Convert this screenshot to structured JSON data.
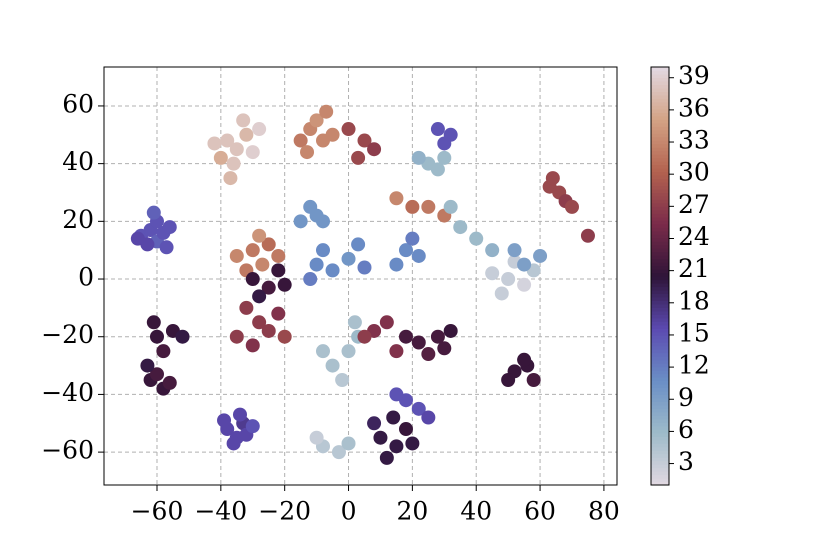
{
  "chart_data": {
    "type": "scatter",
    "xlim": [
      -76.6,
      84.1
    ],
    "ylim": [
      -71.4,
      73.5
    ],
    "xticks": [
      {
        "value": -60,
        "label": "−60"
      },
      {
        "value": -40,
        "label": "−40"
      },
      {
        "value": -20,
        "label": "−20"
      },
      0,
      20,
      40,
      60,
      80
    ],
    "yticks": [
      {
        "value": -60,
        "label": "−60"
      },
      {
        "value": -40,
        "label": "−40"
      },
      {
        "value": -20,
        "label": "−20"
      },
      0,
      20,
      40,
      60
    ],
    "grid": true,
    "clim": [
      1,
      40
    ],
    "cticks": [
      3,
      6,
      9,
      12,
      15,
      18,
      21,
      24,
      27,
      30,
      33,
      36,
      39
    ],
    "colormap": [
      "#e2d9e2",
      "#9ebbc9",
      "#6a8fc6",
      "#5b4ab1",
      "#2f1438",
      "#7a2b4a",
      "#b3624f",
      "#d4a385",
      "#e2d9e2"
    ],
    "x": [
      -65,
      -62,
      -60,
      -63,
      -58,
      -60,
      -56,
      -61,
      -66,
      -57,
      -62,
      -60,
      -58,
      -63,
      -60,
      -58,
      -55,
      -52,
      -61,
      -56,
      -38,
      -35,
      -33,
      -36,
      -32,
      -30,
      -39,
      -34,
      -38,
      -35,
      -32,
      -30,
      -36,
      -40,
      -33,
      -28,
      -37,
      -42,
      -12,
      -8,
      -10,
      -5,
      -15,
      -7,
      -13,
      -30,
      -27,
      -25,
      -32,
      -35,
      -22,
      -28,
      -30,
      -25,
      -20,
      -28,
      -22,
      -28,
      -25,
      -22,
      -32,
      -20,
      -35,
      -30,
      -10,
      -5,
      0,
      5,
      -8,
      3,
      -12,
      -15,
      -10,
      0,
      -5,
      3,
      -2,
      -8,
      2,
      -8,
      -3,
      -10,
      0,
      10,
      15,
      18,
      12,
      8,
      20,
      14,
      18,
      22,
      25,
      15,
      22,
      28,
      25,
      30,
      18,
      32,
      8,
      12,
      5,
      15,
      52,
      56,
      58,
      55,
      50,
      45,
      50,
      55,
      48,
      58,
      52,
      55,
      60,
      52,
      63,
      66,
      68,
      70,
      75,
      64,
      18,
      22,
      20,
      15,
      25,
      28,
      22,
      30,
      28,
      32,
      30,
      25,
      30,
      15,
      20,
      35,
      40,
      45,
      32,
      0,
      5,
      8,
      3,
      -12,
      -8
    ],
    "values": [
      15,
      17,
      13,
      12,
      16,
      20,
      18,
      23,
      14,
      11,
      -35,
      -33,
      -38,
      -30,
      -20,
      -25,
      -18,
      -20,
      -15,
      -36,
      -52,
      -55,
      -50,
      -57,
      -54,
      -51,
      -49,
      -47,
      48,
      45,
      50,
      44,
      40,
      42,
      55,
      52,
      35,
      47,
      52,
      48,
      55,
      50,
      48,
      58,
      44,
      10,
      5,
      12,
      3,
      8,
      8,
      15,
      0,
      -3,
      -2,
      -6,
      3,
      -15,
      -18,
      -12,
      -10,
      -20,
      -20,
      -23,
      5,
      3,
      7,
      4,
      10,
      12,
      0,
      20,
      22,
      -25,
      -30,
      -20,
      -35,
      -25,
      -15,
      -58,
      -60,
      -55,
      -57,
      -55,
      -58,
      -52,
      -62,
      -50,
      -57,
      -48,
      -42,
      -45,
      -48,
      -40,
      -22,
      -20,
      -26,
      -24,
      -20,
      -18,
      -18,
      -15,
      -20,
      -25,
      -32,
      -30,
      -35,
      -28,
      -35,
      2,
      0,
      -2,
      -5,
      3,
      6,
      5,
      8,
      10,
      32,
      30,
      27,
      25,
      15,
      35,
      10,
      8,
      14,
      5,
      40,
      38,
      42,
      42,
      52,
      50,
      47,
      25,
      22,
      28,
      25,
      18,
      14,
      10,
      25,
      52,
      48,
      45,
      42,
      25,
      20
    ],
    "colors": [
      15,
      15,
      14,
      16,
      15,
      15,
      15,
      14,
      16,
      15,
      21,
      22,
      21,
      20,
      21,
      22,
      21,
      20,
      21,
      22,
      16,
      16,
      17,
      16,
      16,
      15,
      16,
      16,
      38,
      38,
      37,
      39,
      38,
      36,
      38,
      39,
      37,
      38,
      33,
      33,
      34,
      33,
      32,
      33,
      33,
      32,
      33,
      31,
      32,
      33,
      32,
      34,
      21,
      22,
      21,
      20,
      21,
      27,
      27,
      26,
      27,
      28,
      27,
      26,
      11,
      11,
      10,
      12,
      11,
      11,
      12,
      10,
      10,
      5,
      5,
      6,
      4,
      5,
      5,
      4,
      4,
      3,
      5,
      20,
      20,
      21,
      20,
      19,
      20,
      20,
      15,
      15,
      16,
      15,
      22,
      22,
      23,
      22,
      22,
      21,
      26,
      26,
      27,
      26,
      21,
      21,
      22,
      21,
      21,
      3,
      3,
      2,
      3,
      4,
      3,
      9,
      9,
      9,
      28,
      28,
      27,
      28,
      27,
      28,
      11,
      11,
      12,
      11,
      6,
      6,
      7,
      6,
      15,
      15,
      15,
      32,
      32,
      33,
      31,
      6,
      6,
      7,
      6,
      28,
      28,
      27,
      28,
      10,
      10
    ]
  }
}
